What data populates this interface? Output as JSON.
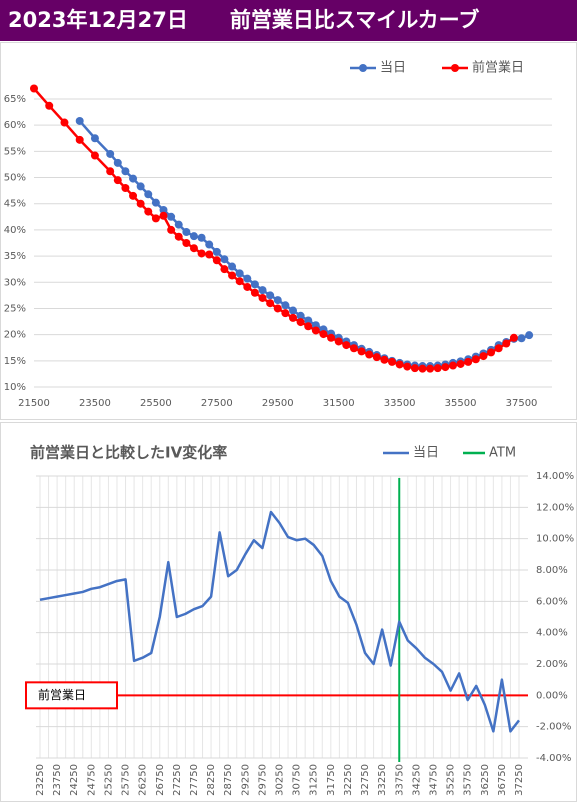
{
  "header": {
    "title": "2023年12月27日　　前営業日比スマイルカーブ"
  },
  "chart_data": [
    {
      "type": "line",
      "markers": true,
      "x": [
        21500,
        22000,
        22500,
        23000,
        23500,
        24000,
        24250,
        24500,
        24750,
        25000,
        25250,
        25500,
        25750,
        26000,
        26250,
        26500,
        26750,
        27000,
        27250,
        27500,
        27750,
        28000,
        28250,
        28500,
        28750,
        29000,
        29250,
        29500,
        29750,
        30000,
        30250,
        30500,
        30750,
        31000,
        31250,
        31500,
        31750,
        32000,
        32250,
        32500,
        32750,
        33000,
        33250,
        33500,
        33750,
        34000,
        34250,
        34500,
        34750,
        35000,
        35250,
        35500,
        35750,
        36000,
        36250,
        36500,
        36750,
        37000,
        37250,
        37500,
        37750
      ],
      "series": [
        {
          "name": "当日",
          "color": "#4472c4",
          "values": [
            null,
            null,
            null,
            60.8,
            57.5,
            54.5,
            52.8,
            51.2,
            49.8,
            48.3,
            46.8,
            45.2,
            43.8,
            42.5,
            41,
            39.6,
            38.8,
            38.5,
            37.2,
            35.8,
            34.4,
            33,
            31.7,
            30.7,
            29.6,
            28.5,
            27.5,
            26.6,
            25.6,
            24.6,
            23.6,
            22.7,
            21.8,
            21,
            20.2,
            19.4,
            18.7,
            18,
            17.3,
            16.7,
            16.1,
            15.5,
            15,
            14.6,
            14.3,
            14.1,
            14,
            14,
            14.1,
            14.3,
            14.6,
            14.9,
            15.3,
            15.8,
            16.4,
            17.1,
            18,
            18.6,
            19.2,
            19.3,
            19.9
          ]
        },
        {
          "name": "前営業日",
          "color": "#ff0000",
          "values": [
            67,
            63.7,
            60.5,
            57.2,
            54.2,
            51.2,
            49.5,
            48,
            46.5,
            45,
            43.5,
            42.2,
            42.7,
            40,
            38.7,
            37.5,
            36.5,
            35.5,
            35.3,
            34.2,
            32.5,
            31.3,
            30.2,
            29.1,
            28,
            27,
            26,
            25,
            24.1,
            23.2,
            22.4,
            21.6,
            20.8,
            20.1,
            19.4,
            18.7,
            18,
            17.4,
            16.8,
            16.2,
            15.7,
            15.2,
            14.8,
            14.3,
            13.9,
            13.6,
            13.5,
            13.5,
            13.6,
            13.8,
            14.1,
            14.4,
            14.8,
            15.3,
            15.9,
            16.6,
            17.4,
            18.3,
            19.4,
            null,
            null
          ]
        }
      ],
      "xlim": [
        21500,
        38500
      ],
      "xticks": [
        21500,
        23500,
        25500,
        27500,
        29500,
        31500,
        33500,
        35500,
        37500
      ],
      "ylim": [
        10,
        67
      ],
      "yticks": [
        {
          "value": 10,
          "label": "10%"
        },
        {
          "value": 15,
          "label": "15%"
        },
        {
          "value": 20,
          "label": "20%"
        },
        {
          "value": 25,
          "label": "25%"
        },
        {
          "value": 30,
          "label": "30%"
        },
        {
          "value": 35,
          "label": "35%"
        },
        {
          "value": 40,
          "label": "40%"
        },
        {
          "value": 45,
          "label": "45%"
        },
        {
          "value": 50,
          "label": "50%"
        },
        {
          "value": 55,
          "label": "55%"
        },
        {
          "value": 60,
          "label": "60%"
        },
        {
          "value": 65,
          "label": "65%"
        }
      ],
      "grid": true,
      "legend": "top"
    },
    {
      "type": "line",
      "markers": false,
      "title": "前営業日と比較したIV変化率",
      "categories": [
        23250,
        null,
        23750,
        null,
        24250,
        null,
        24750,
        null,
        25250,
        null,
        25750,
        null,
        26250,
        null,
        26750,
        null,
        27250,
        null,
        27750,
        null,
        28250,
        null,
        28750,
        null,
        29250,
        null,
        29750,
        null,
        30250,
        null,
        30750,
        null,
        31250,
        null,
        31750,
        null,
        32250,
        null,
        32750,
        null,
        33250,
        null,
        33750,
        null,
        34250,
        null,
        34750,
        null,
        35250,
        null,
        35750,
        null,
        36250,
        null,
        36750,
        null,
        37250
      ],
      "series": [
        {
          "name": "当日",
          "color": "#4472c4",
          "values": [
            6.1,
            6.2,
            6.3,
            6.4,
            6.5,
            6.6,
            6.8,
            6.9,
            7.1,
            7.3,
            7.4,
            2.2,
            2.4,
            2.7,
            5.0,
            8.5,
            5.0,
            5.2,
            5.5,
            5.7,
            6.3,
            10.4,
            7.6,
            8.0,
            9.0,
            9.9,
            9.4,
            11.7,
            11.0,
            10.1,
            9.9,
            10.0,
            9.6,
            8.9,
            7.3,
            6.3,
            5.9,
            4.5,
            2.7,
            2.0,
            4.2,
            1.9,
            4.7,
            3.5,
            3.0,
            2.4,
            2.0,
            1.5,
            0.3,
            1.4,
            -0.3,
            0.6,
            -0.6,
            -2.3,
            1.0,
            -2.3,
            -1.6
          ]
        }
      ],
      "atm": {
        "name": "ATM",
        "color": "#00b050",
        "category": 33750
      },
      "baseline": {
        "label": "前営業日",
        "value": 0,
        "color": "#ff0000"
      },
      "ylim": [
        -4,
        14
      ],
      "y_axis_side": "right",
      "yticks": [
        {
          "value": -4,
          "label": "-4.00%"
        },
        {
          "value": -2,
          "label": "-2.00%"
        },
        {
          "value": 0,
          "label": "0.00%"
        },
        {
          "value": 2,
          "label": "2.00%"
        },
        {
          "value": 4,
          "label": "4.00%"
        },
        {
          "value": 6,
          "label": "6.00%"
        },
        {
          "value": 8,
          "label": "8.00%"
        },
        {
          "value": 10,
          "label": "10.00%"
        },
        {
          "value": 12,
          "label": "12.00%"
        },
        {
          "value": 14,
          "label": "14.00%"
        }
      ],
      "grid": true,
      "legend": "top"
    }
  ]
}
